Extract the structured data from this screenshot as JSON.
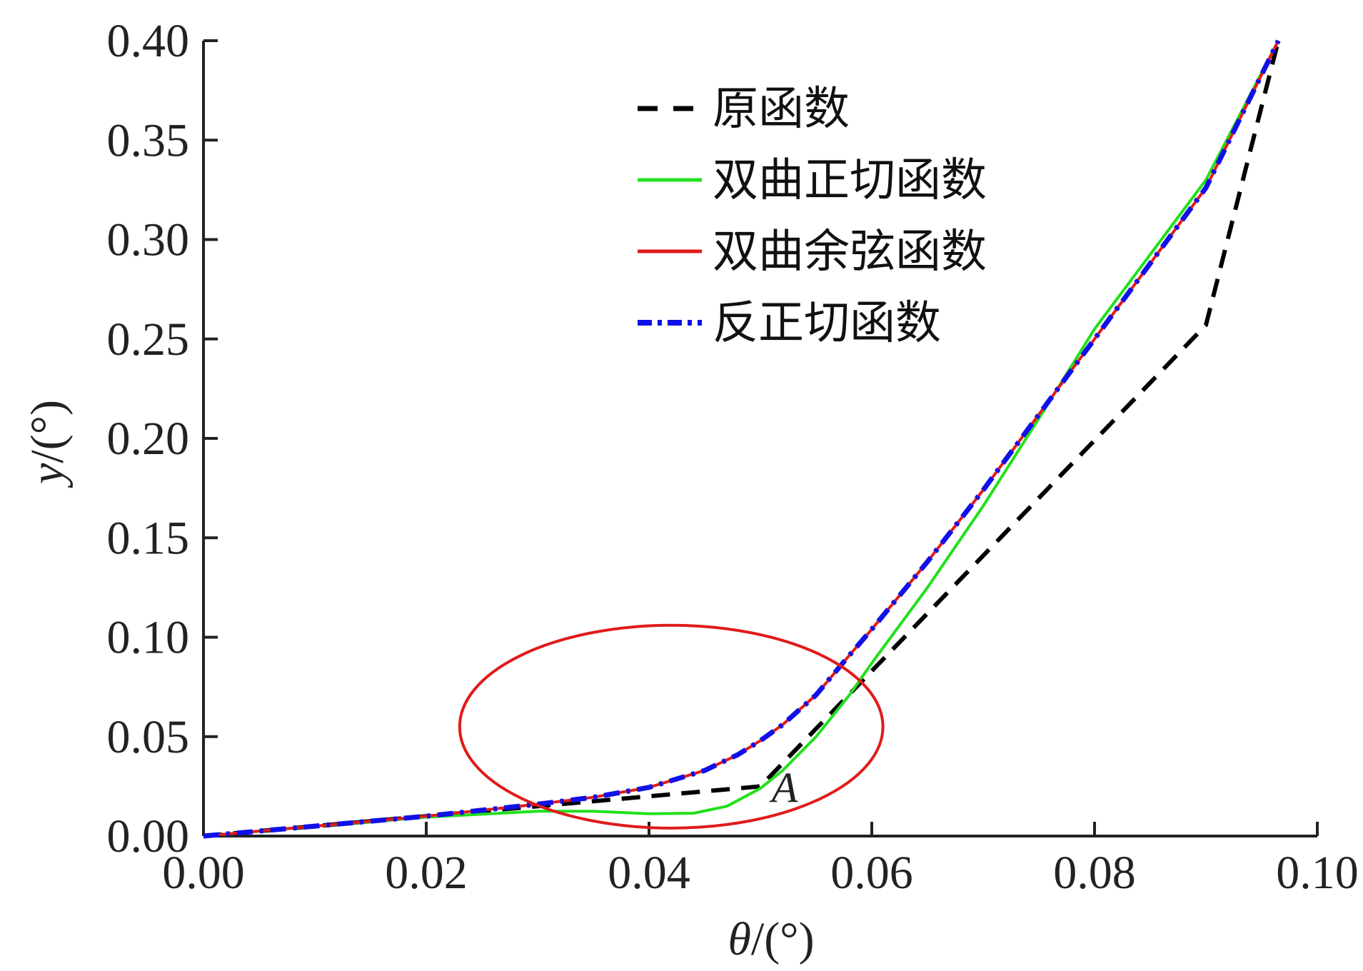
{
  "chart_data": {
    "type": "line",
    "title": "",
    "xlabel_var": "θ",
    "xlabel_unit": "/(°)",
    "ylabel_var": "y",
    "ylabel_unit": "/(°)",
    "xlim": [
      0,
      0.1
    ],
    "ylim": [
      0,
      0.4
    ],
    "x_ticks": [
      "0.00",
      "0.02",
      "0.04",
      "0.06",
      "0.08",
      "0.10"
    ],
    "y_ticks": [
      "0.00",
      "0.05",
      "0.10",
      "0.15",
      "0.20",
      "0.25",
      "0.30",
      "0.35",
      "0.40"
    ],
    "grid": false,
    "legend_position": "top-center",
    "series": [
      {
        "name": "原函数",
        "color": "#000000",
        "style": "dashed",
        "x": [
          0,
          0.01,
          0.02,
          0.03,
          0.04,
          0.05,
          0.052,
          0.055,
          0.058,
          0.06,
          0.065,
          0.07,
          0.075,
          0.08,
          0.085,
          0.09,
          0.0965
        ],
        "y": [
          0,
          0.005,
          0.01,
          0.015,
          0.02,
          0.025,
          0.0366,
          0.054,
          0.0714,
          0.083,
          0.112,
          0.141,
          0.17,
          0.199,
          0.228,
          0.257,
          0.4
        ]
      },
      {
        "name": "双曲正切函数",
        "color": "#22e01c",
        "style": "solid",
        "x": [
          0,
          0.01,
          0.02,
          0.03,
          0.035,
          0.04,
          0.044,
          0.047,
          0.05,
          0.052,
          0.055,
          0.058,
          0.06,
          0.065,
          0.07,
          0.075,
          0.08,
          0.09,
          0.0965
        ],
        "y": [
          0,
          0.005,
          0.0095,
          0.0125,
          0.0125,
          0.0112,
          0.0115,
          0.015,
          0.024,
          0.033,
          0.05,
          0.071,
          0.087,
          0.125,
          0.166,
          0.21,
          0.255,
          0.33,
          0.4
        ]
      },
      {
        "name": "双曲余弦函数",
        "color": "#e01b1b",
        "style": "solid",
        "x": [
          0,
          0.01,
          0.02,
          0.03,
          0.035,
          0.04,
          0.045,
          0.048,
          0.05,
          0.052,
          0.055,
          0.058,
          0.06,
          0.065,
          0.07,
          0.075,
          0.08,
          0.09,
          0.0965
        ],
        "y": [
          0,
          0.005,
          0.01,
          0.016,
          0.0195,
          0.0245,
          0.033,
          0.041,
          0.048,
          0.056,
          0.071,
          0.091,
          0.104,
          0.138,
          0.174,
          0.212,
          0.25,
          0.326,
          0.4
        ]
      },
      {
        "name": "反正切函数",
        "color": "#1010e8",
        "style": "dash-dot",
        "x": [
          0,
          0.01,
          0.02,
          0.03,
          0.035,
          0.04,
          0.045,
          0.048,
          0.05,
          0.052,
          0.055,
          0.058,
          0.06,
          0.065,
          0.07,
          0.075,
          0.08,
          0.09,
          0.0965
        ],
        "y": [
          0,
          0.005,
          0.01,
          0.016,
          0.0195,
          0.0245,
          0.033,
          0.041,
          0.048,
          0.056,
          0.071,
          0.091,
          0.104,
          0.138,
          0.174,
          0.212,
          0.25,
          0.326,
          0.4
        ]
      }
    ],
    "annotations": [
      {
        "text": "A",
        "x": 0.0505,
        "y": 0.025
      }
    ],
    "highlight_ellipse": {
      "cx": 0.042,
      "cy": 0.055,
      "rx": 0.019,
      "ry": 0.051,
      "color": "#e01b1b"
    }
  }
}
